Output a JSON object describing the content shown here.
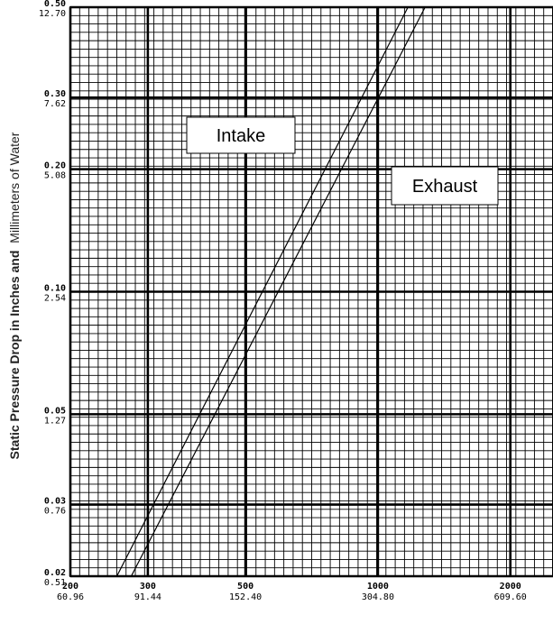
{
  "chart_data": {
    "type": "line",
    "x_scale": "log",
    "y_scale": "log",
    "grid": true,
    "xlim": [
      200,
      2500
    ],
    "ylim": [
      0.02,
      0.5
    ],
    "ylabel": {
      "bold_part": "Static Pressure Drop in Inches and",
      "normal_part": "Millimeters of Water"
    },
    "x_ticks": [
      {
        "value": 200,
        "label": "200",
        "sub": "60.96"
      },
      {
        "value": 300,
        "label": "300",
        "sub": "91.44"
      },
      {
        "value": 500,
        "label": "500",
        "sub": "152.40"
      },
      {
        "value": 1000,
        "label": "1000",
        "sub": "304.80"
      },
      {
        "value": 2000,
        "label": "2000",
        "sub": "609.60"
      }
    ],
    "y_ticks": [
      {
        "value": 0.5,
        "label": "0.50",
        "sub": "12.70"
      },
      {
        "value": 0.3,
        "label": "0.30",
        "sub": "7.62"
      },
      {
        "value": 0.2,
        "label": "0.20",
        "sub": "5.08"
      },
      {
        "value": 0.1,
        "label": "0.10",
        "sub": "2.54"
      },
      {
        "value": 0.05,
        "label": "0.05",
        "sub": "1.27"
      },
      {
        "value": 0.03,
        "label": "0.03",
        "sub": "0.76"
      },
      {
        "value": 0.02,
        "label": "0.02",
        "sub": "0.51"
      }
    ],
    "series": [
      {
        "name": "Intake",
        "x": [
          255,
          1170
        ],
        "y": [
          0.02,
          0.5
        ]
      },
      {
        "name": "Exhaust",
        "x": [
          275,
          1280
        ],
        "y": [
          0.02,
          0.5
        ]
      }
    ]
  }
}
